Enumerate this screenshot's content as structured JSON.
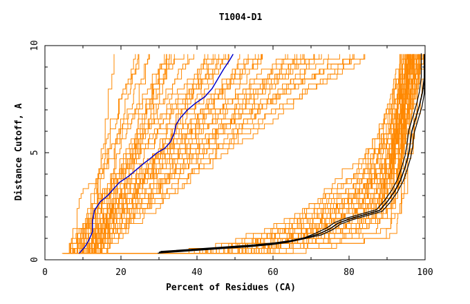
{
  "chart_data": {
    "type": "line",
    "title": "T1004-D1",
    "xlabel": "Percent of Residues (CA)",
    "ylabel": "Distance Cutoff, A",
    "xlim": [
      0,
      100
    ],
    "ylim": [
      0,
      10
    ],
    "x_ticks": [
      "0",
      "20",
      "40",
      "60",
      "80",
      "100"
    ],
    "y_ticks": [
      "0",
      "5",
      "10"
    ],
    "grid": false,
    "colors": {
      "background_series": "#ff8800",
      "highlight_blue": "#0000cc",
      "highlight_black": "#000000"
    },
    "highlight_series": [
      {
        "color": "#0000cc",
        "points": [
          [
            9,
            0.3
          ],
          [
            10.5,
            0.6
          ],
          [
            11.5,
            0.9
          ],
          [
            12.5,
            1.3
          ],
          [
            12.5,
            1.8
          ],
          [
            13,
            2.3
          ],
          [
            14.5,
            2.7
          ],
          [
            16.5,
            3.0
          ],
          [
            18,
            3.3
          ],
          [
            19.5,
            3.6
          ],
          [
            22,
            3.9
          ],
          [
            24,
            4.2
          ],
          [
            26,
            4.5
          ],
          [
            27.5,
            4.7
          ],
          [
            29.5,
            5.0
          ],
          [
            31.5,
            5.2
          ],
          [
            33,
            5.5
          ],
          [
            34,
            5.9
          ],
          [
            34.5,
            6.3
          ],
          [
            35.5,
            6.6
          ],
          [
            37.5,
            7.0
          ],
          [
            39.5,
            7.3
          ],
          [
            42,
            7.6
          ],
          [
            44,
            8.0
          ],
          [
            45,
            8.3
          ],
          [
            46,
            8.6
          ],
          [
            47,
            8.9
          ],
          [
            48.5,
            9.3
          ],
          [
            49.5,
            9.6
          ]
        ]
      },
      {
        "color": "#000000",
        "points": [
          [
            30,
            0.35
          ],
          [
            38,
            0.45
          ],
          [
            46,
            0.55
          ],
          [
            54,
            0.65
          ],
          [
            60,
            0.75
          ],
          [
            64,
            0.85
          ],
          [
            68,
            1.0
          ],
          [
            72,
            1.2
          ],
          [
            75,
            1.45
          ],
          [
            77,
            1.7
          ],
          [
            80,
            1.9
          ],
          [
            84,
            2.1
          ],
          [
            88,
            2.3
          ],
          [
            90,
            2.7
          ],
          [
            92,
            3.2
          ],
          [
            93.5,
            3.7
          ],
          [
            94.5,
            4.2
          ],
          [
            95.5,
            4.8
          ],
          [
            96,
            5.3
          ],
          [
            96.5,
            6.0
          ],
          [
            97.5,
            6.6
          ],
          [
            98.5,
            7.2
          ],
          [
            99.3,
            7.8
          ],
          [
            99.8,
            8.5
          ],
          [
            99.8,
            9.6
          ]
        ]
      }
    ]
  }
}
